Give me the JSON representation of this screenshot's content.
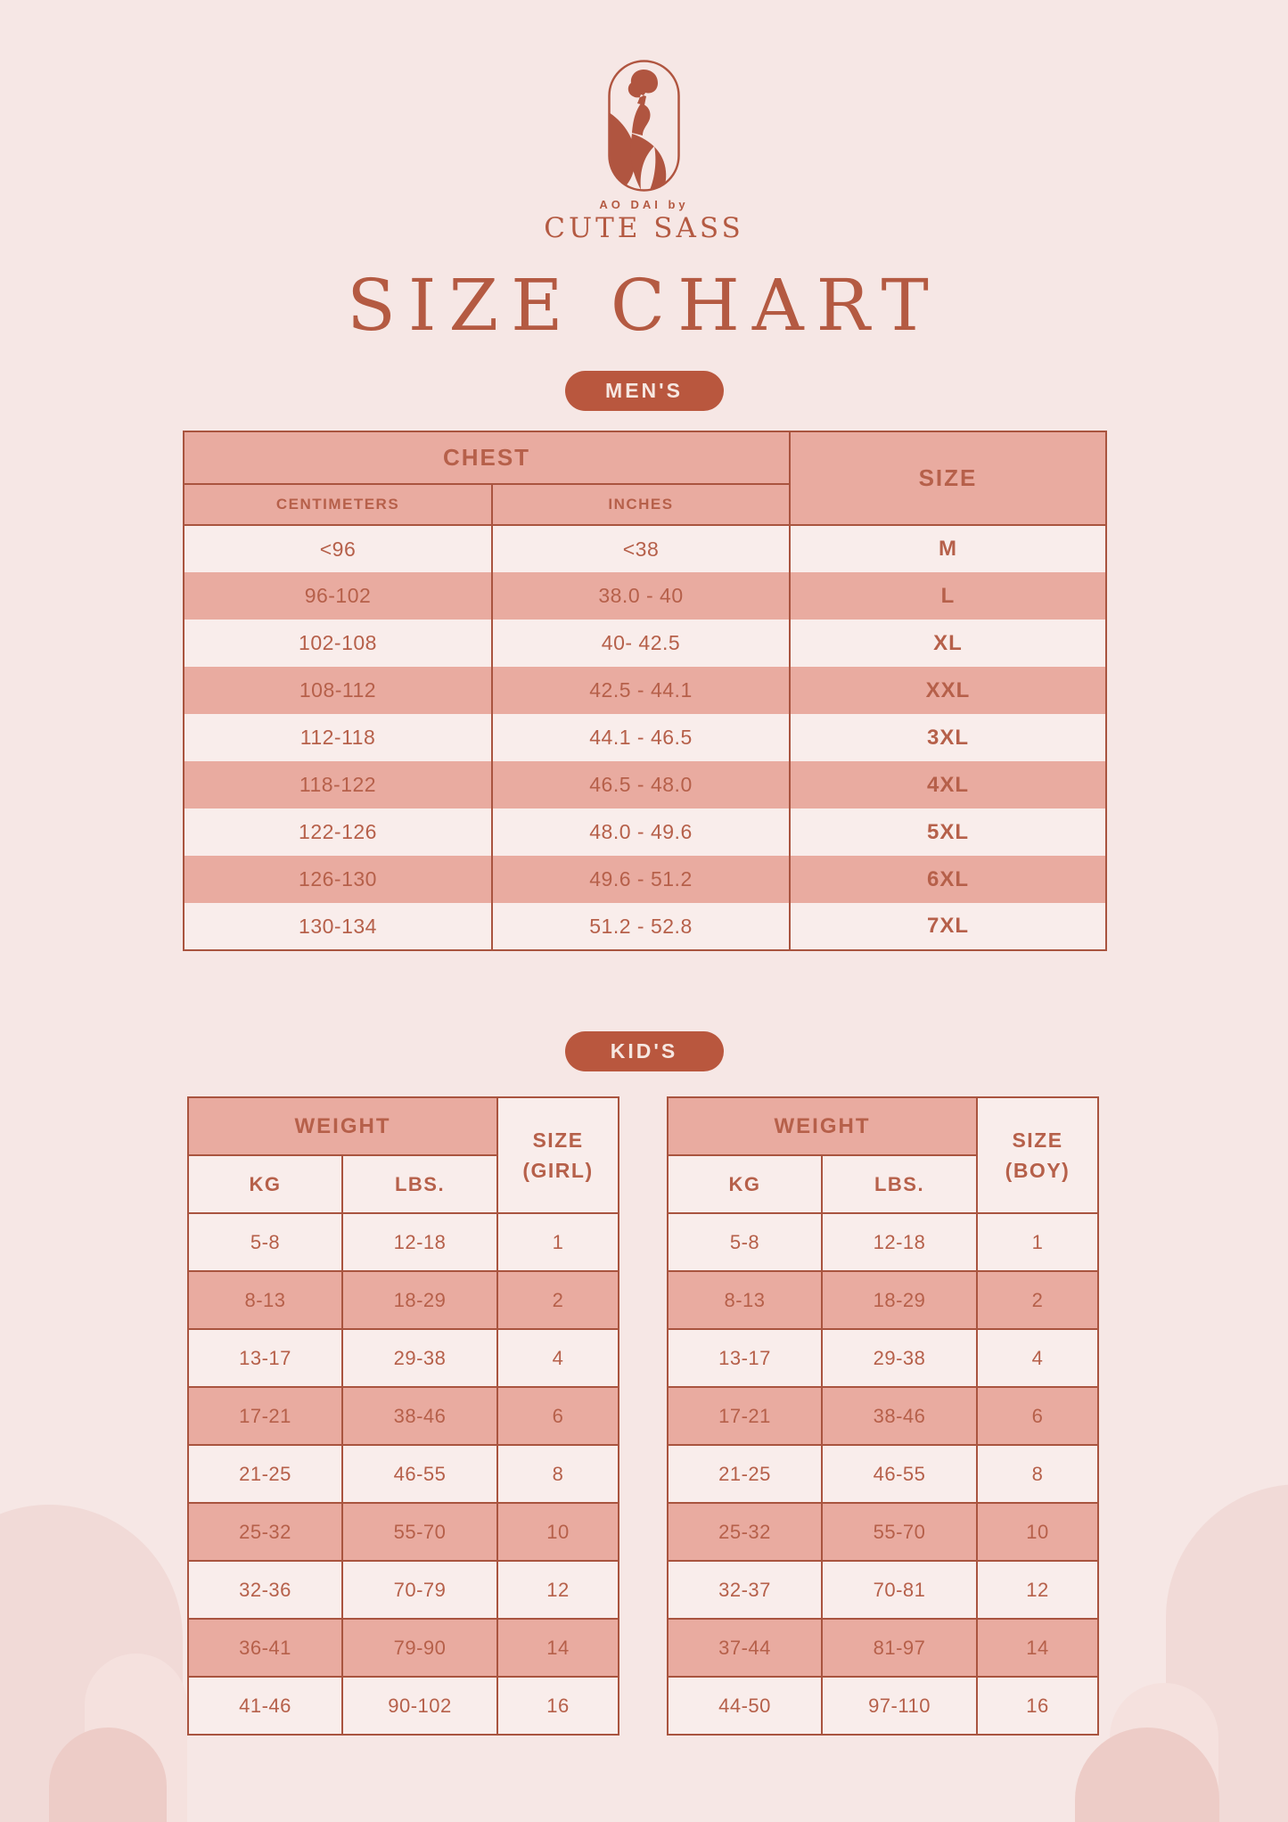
{
  "brand": {
    "tagline": "AO DAI by",
    "name": "CUTE SASS",
    "logo_mark": "woman-in-ao-dai-oval-emblem"
  },
  "page": {
    "title": "SIZE CHART"
  },
  "colors": {
    "background": "#f6e7e5",
    "light_cell": "#f9edeb",
    "dark_cell": "#e9aba0",
    "border": "#a9543f",
    "text": "#b6604a",
    "badge_background": "#b9573e",
    "badge_text": "#f6e7e1"
  },
  "sections": {
    "mens": {
      "badge": "MEN'S",
      "table": {
        "group_header": "CHEST",
        "sub_headers": {
          "col1": "CENTIMETERS",
          "col2": "INCHES"
        },
        "size_header": "SIZE",
        "rows": [
          {
            "cm": "<96",
            "in": "<38",
            "size": "M"
          },
          {
            "cm": "96-102",
            "in": "38.0 - 40",
            "size": "L"
          },
          {
            "cm": "102-108",
            "in": "40- 42.5",
            "size": "XL"
          },
          {
            "cm": "108-112",
            "in": "42.5 - 44.1",
            "size": "XXL"
          },
          {
            "cm": "112-118",
            "in": "44.1 - 46.5",
            "size": "3XL"
          },
          {
            "cm": "118-122",
            "in": "46.5 - 48.0",
            "size": "4XL"
          },
          {
            "cm": "122-126",
            "in": "48.0 - 49.6",
            "size": "5XL"
          },
          {
            "cm": "126-130",
            "in": "49.6 - 51.2",
            "size": "6XL"
          },
          {
            "cm": "130-134",
            "in": "51.2 - 52.8",
            "size": "7XL"
          }
        ]
      }
    },
    "kids": {
      "badge": "KID'S",
      "girl": {
        "group_header": "WEIGHT",
        "sub_headers": {
          "col1": "KG",
          "col2": "LBS."
        },
        "size_header_line1": "SIZE",
        "size_header_line2": "(GIRL)",
        "rows": [
          {
            "kg": "5-8",
            "lbs": "12-18",
            "size": "1"
          },
          {
            "kg": "8-13",
            "lbs": "18-29",
            "size": "2"
          },
          {
            "kg": "13-17",
            "lbs": "29-38",
            "size": "4"
          },
          {
            "kg": "17-21",
            "lbs": "38-46",
            "size": "6"
          },
          {
            "kg": "21-25",
            "lbs": "46-55",
            "size": "8"
          },
          {
            "kg": "25-32",
            "lbs": "55-70",
            "size": "10"
          },
          {
            "kg": "32-36",
            "lbs": "70-79",
            "size": "12"
          },
          {
            "kg": "36-41",
            "lbs": "79-90",
            "size": "14"
          },
          {
            "kg": "41-46",
            "lbs": "90-102",
            "size": "16"
          }
        ]
      },
      "boy": {
        "group_header": "WEIGHT",
        "sub_headers": {
          "col1": "KG",
          "col2": "LBS."
        },
        "size_header_line1": "SIZE",
        "size_header_line2": "(BOY)",
        "rows": [
          {
            "kg": "5-8",
            "lbs": "12-18",
            "size": "1"
          },
          {
            "kg": "8-13",
            "lbs": "18-29",
            "size": "2"
          },
          {
            "kg": "13-17",
            "lbs": "29-38",
            "size": "4"
          },
          {
            "kg": "17-21",
            "lbs": "38-46",
            "size": "6"
          },
          {
            "kg": "21-25",
            "lbs": "46-55",
            "size": "8"
          },
          {
            "kg": "25-32",
            "lbs": "55-70",
            "size": "10"
          },
          {
            "kg": "32-37",
            "lbs": "70-81",
            "size": "12"
          },
          {
            "kg": "37-44",
            "lbs": "81-97",
            "size": "14"
          },
          {
            "kg": "44-50",
            "lbs": "97-110",
            "size": "16"
          }
        ]
      }
    }
  }
}
